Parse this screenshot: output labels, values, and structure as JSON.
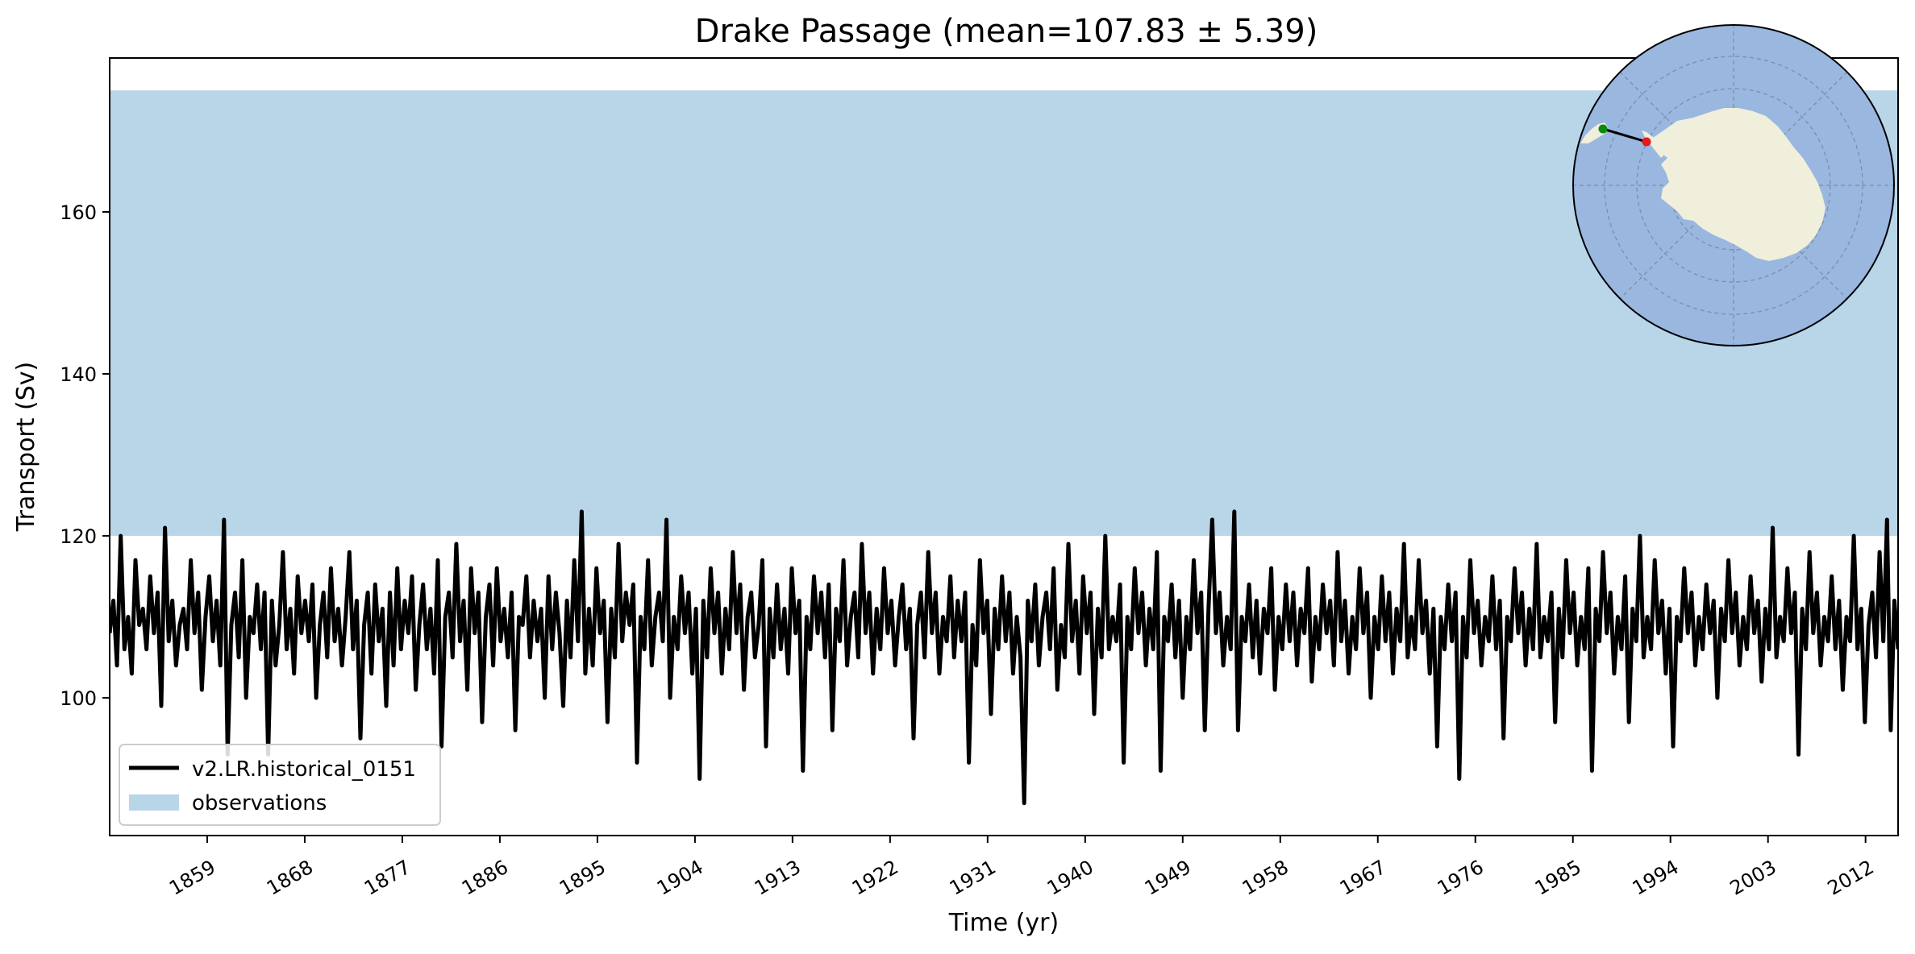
{
  "chart_data": {
    "type": "line",
    "title": "Drake Passage (mean=107.83 ± 5.39)",
    "xlabel": "Time (yr)",
    "ylabel": "Transport (Sv)",
    "xlim": [
      1850,
      2015
    ],
    "ylim": [
      83,
      179
    ],
    "x_ticks": [
      1859,
      1868,
      1877,
      1886,
      1895,
      1904,
      1913,
      1922,
      1931,
      1940,
      1949,
      1958,
      1967,
      1976,
      1985,
      1994,
      2003,
      2012
    ],
    "y_ticks": [
      100,
      120,
      140,
      160
    ],
    "grid": false,
    "legend": {
      "position": "lower-left"
    },
    "mean": 107.83,
    "std": 5.39,
    "observation_band": {
      "name": "observations",
      "ymin": 120,
      "ymax": 175,
      "color": "#b9d5e8"
    },
    "series": [
      {
        "name": "v2.LR.historical_0151",
        "color": "#000000",
        "x_start": 1850,
        "x_end": 2015,
        "values": [
          108,
          112,
          104,
          120,
          106,
          110,
          103,
          117,
          109,
          111,
          106,
          115,
          108,
          113,
          99,
          121,
          107,
          112,
          104,
          109,
          111,
          106,
          117,
          108,
          113,
          101,
          110,
          115,
          107,
          112,
          104,
          122,
          93,
          109,
          113,
          105,
          117,
          100,
          110,
          108,
          114,
          106,
          113,
          93,
          112,
          104,
          109,
          118,
          106,
          111,
          103,
          115,
          108,
          112,
          107,
          114,
          100,
          109,
          113,
          105,
          116,
          107,
          111,
          104,
          110,
          118,
          106,
          112,
          95,
          109,
          113,
          103,
          114,
          107,
          111,
          99,
          113,
          104,
          116,
          106,
          112,
          108,
          115,
          101,
          109,
          114,
          106,
          111,
          103,
          117,
          94,
          110,
          113,
          105,
          119,
          107,
          112,
          101,
          116,
          108,
          113,
          97,
          110,
          114,
          104,
          116,
          107,
          111,
          105,
          113,
          96,
          110,
          109,
          115,
          105,
          112,
          107,
          111,
          100,
          115,
          106,
          113,
          108,
          99,
          112,
          105,
          117,
          107,
          123,
          103,
          111,
          104,
          116,
          108,
          112,
          97,
          111,
          105,
          119,
          107,
          113,
          109,
          114,
          92,
          110,
          106,
          117,
          104,
          110,
          113,
          107,
          122,
          100,
          110,
          106,
          115,
          108,
          113,
          103,
          111,
          90,
          112,
          105,
          116,
          108,
          113,
          103,
          111,
          106,
          118,
          108,
          114,
          101,
          110,
          113,
          105,
          109,
          117,
          94,
          111,
          105,
          114,
          106,
          111,
          103,
          116,
          108,
          112,
          91,
          110,
          106,
          115,
          108,
          113,
          105,
          114,
          96,
          111,
          107,
          117,
          104,
          110,
          113,
          105,
          119,
          108,
          113,
          103,
          111,
          106,
          116,
          108,
          112,
          104,
          110,
          114,
          106,
          111,
          95,
          109,
          113,
          105,
          118,
          108,
          113,
          103,
          110,
          107,
          115,
          105,
          112,
          107,
          113,
          92,
          109,
          104,
          117,
          108,
          112,
          98,
          111,
          106,
          115,
          107,
          113,
          103,
          110,
          105,
          87,
          112,
          107,
          114,
          104,
          110,
          113,
          106,
          116,
          101,
          109,
          105,
          119,
          107,
          112,
          103,
          115,
          108,
          113,
          98,
          111,
          105,
          120,
          106,
          110,
          107,
          114,
          92,
          110,
          106,
          116,
          108,
          113,
          104,
          111,
          106,
          118,
          91,
          110,
          107,
          114,
          105,
          112,
          100,
          110,
          106,
          117,
          108,
          113,
          96,
          111,
          122,
          108,
          113,
          104,
          110,
          106,
          123,
          96,
          110,
          107,
          114,
          105,
          112,
          103,
          111,
          108,
          116,
          101,
          110,
          106,
          114,
          107,
          113,
          104,
          111,
          108,
          116,
          102,
          110,
          106,
          114,
          108,
          112,
          104,
          118,
          107,
          112,
          103,
          110,
          106,
          116,
          108,
          113,
          100,
          110,
          106,
          115,
          107,
          113,
          103,
          111,
          107,
          119,
          105,
          110,
          106,
          117,
          108,
          112,
          103,
          111,
          94,
          110,
          106,
          114,
          107,
          113,
          90,
          110,
          105,
          117,
          108,
          112,
          104,
          110,
          107,
          115,
          106,
          112,
          95,
          110,
          107,
          116,
          108,
          113,
          104,
          111,
          106,
          119,
          105,
          110,
          107,
          113,
          97,
          111,
          105,
          117,
          108,
          113,
          104,
          110,
          106,
          116,
          91,
          111,
          107,
          118,
          108,
          113,
          103,
          110,
          106,
          115,
          97,
          111,
          107,
          120,
          105,
          110,
          106,
          117,
          108,
          112,
          103,
          111,
          94,
          110,
          107,
          116,
          108,
          113,
          104,
          110,
          106,
          114,
          108,
          112,
          100,
          111,
          107,
          117,
          108,
          113,
          104,
          110,
          106,
          115,
          108,
          112,
          102,
          111,
          106,
          121,
          105,
          110,
          107,
          116,
          108,
          113,
          93,
          111,
          106,
          118,
          108,
          113,
          104,
          110,
          107,
          115,
          106,
          112,
          101,
          110,
          107,
          120,
          106,
          111,
          97,
          109,
          113,
          105,
          118,
          107,
          122,
          96,
          112,
          106
        ]
      }
    ]
  },
  "inset_map": {
    "ocean_color": "#9ab7e0",
    "land_color": "#efefdc",
    "start_point_color": "#0a8a0a",
    "end_point_color": "#e41a1c"
  }
}
